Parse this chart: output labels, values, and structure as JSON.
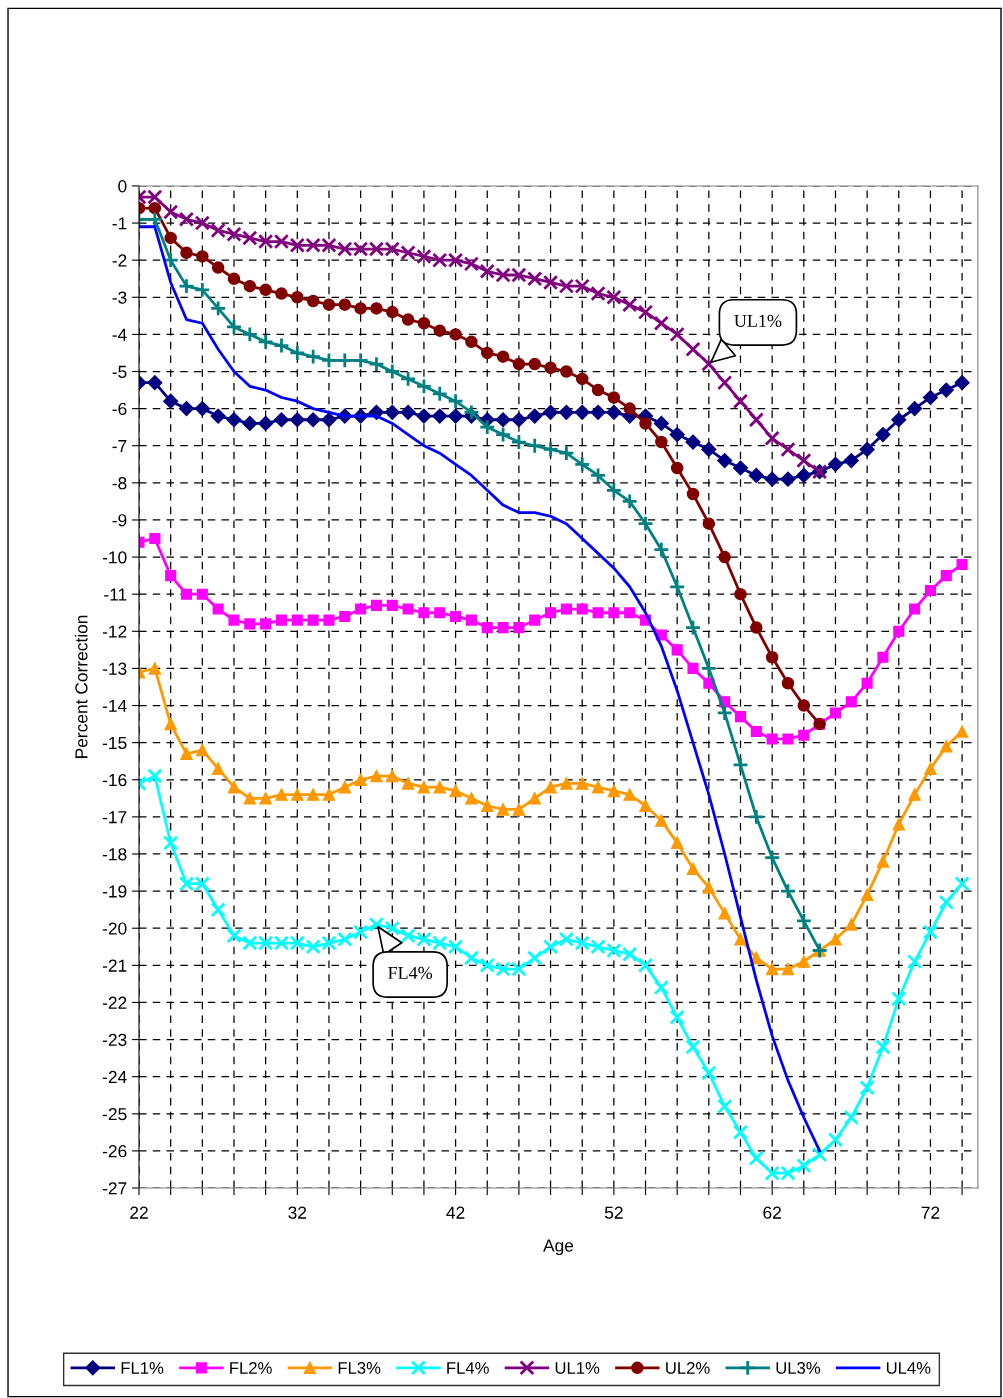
{
  "chart_data": {
    "type": "line",
    "xlabel": "Age",
    "ylabel": "Percent Correction",
    "xlim": [
      22,
      75
    ],
    "ylim": [
      -27,
      0
    ],
    "xticks": [
      22,
      {
        "value": 24,
        "label": null
      },
      {
        "value": 26,
        "label": null
      },
      {
        "value": 28,
        "label": null
      },
      {
        "value": 30,
        "label": null
      },
      32,
      {
        "value": 34,
        "label": null
      },
      {
        "value": 36,
        "label": null
      },
      {
        "value": 38,
        "label": null
      },
      {
        "value": 40,
        "label": null
      },
      42,
      {
        "value": 44,
        "label": null
      },
      {
        "value": 46,
        "label": null
      },
      {
        "value": 48,
        "label": null
      },
      {
        "value": 50,
        "label": null
      },
      52,
      {
        "value": 54,
        "label": null
      },
      {
        "value": 56,
        "label": null
      },
      {
        "value": 58,
        "label": null
      },
      {
        "value": 60,
        "label": null
      },
      62,
      {
        "value": 64,
        "label": null
      },
      {
        "value": 66,
        "label": null
      },
      {
        "value": 68,
        "label": null
      },
      {
        "value": 70,
        "label": null
      },
      72,
      {
        "value": 74,
        "label": null
      }
    ],
    "yticks": [
      0,
      -1,
      -2,
      -3,
      -4,
      -5,
      -6,
      -7,
      -8,
      -9,
      -10,
      -11,
      -12,
      -13,
      -14,
      -15,
      -16,
      -17,
      -18,
      -19,
      -20,
      -21,
      -22,
      -23,
      -24,
      -25,
      -26,
      -27
    ],
    "grid": true,
    "legend": "bottom",
    "line_style": "solid",
    "x": [
      22,
      23,
      24,
      25,
      26,
      27,
      28,
      29,
      30,
      31,
      32,
      33,
      34,
      35,
      36,
      37,
      38,
      39,
      40,
      41,
      42,
      43,
      44,
      45,
      46,
      47,
      48,
      49,
      50,
      51,
      52,
      53,
      54,
      55,
      56,
      57,
      58,
      59,
      60,
      61,
      62,
      63,
      64,
      65,
      66,
      67,
      68,
      69,
      70,
      71,
      72,
      73,
      74
    ],
    "series": [
      {
        "name": "FL1%",
        "color": "#000080",
        "marker": "diamond",
        "values": [
          -5.3,
          -5.3,
          -5.8,
          -6.0,
          -6.0,
          -6.2,
          -6.3,
          -6.4,
          -6.4,
          -6.3,
          -6.3,
          -6.3,
          -6.3,
          -6.2,
          -6.2,
          -6.1,
          -6.1,
          -6.1,
          -6.2,
          -6.2,
          -6.2,
          -6.2,
          -6.3,
          -6.3,
          -6.3,
          -6.2,
          -6.1,
          -6.1,
          -6.1,
          -6.1,
          -6.1,
          -6.2,
          -6.2,
          -6.4,
          -6.7,
          -6.9,
          -7.1,
          -7.4,
          -7.6,
          -7.8,
          -7.9,
          -7.9,
          -7.8,
          -7.7,
          -7.5,
          -7.4,
          -7.1,
          -6.7,
          -6.3,
          -6.0,
          -5.7,
          -5.5,
          -5.3
        ]
      },
      {
        "name": "FL2%",
        "color": "#ff00ff",
        "marker": "square",
        "values": [
          -9.6,
          -9.5,
          -10.5,
          -11.0,
          -11.0,
          -11.4,
          -11.7,
          -11.8,
          -11.8,
          -11.7,
          -11.7,
          -11.7,
          -11.7,
          -11.6,
          -11.4,
          -11.3,
          -11.3,
          -11.4,
          -11.5,
          -11.5,
          -11.6,
          -11.7,
          -11.9,
          -11.9,
          -11.9,
          -11.7,
          -11.5,
          -11.4,
          -11.4,
          -11.5,
          -11.5,
          -11.5,
          -11.7,
          -12.1,
          -12.5,
          -13.0,
          -13.4,
          -13.9,
          -14.3,
          -14.7,
          -14.9,
          -14.9,
          -14.8,
          -14.5,
          -14.2,
          -13.9,
          -13.4,
          -12.7,
          -12.0,
          -11.4,
          -10.9,
          -10.5,
          -10.2
        ]
      },
      {
        "name": "FL3%",
        "color": "#ff9900",
        "marker": "triangle",
        "values": [
          -13.1,
          -13.0,
          -14.5,
          -15.3,
          -15.2,
          -15.7,
          -16.2,
          -16.5,
          -16.5,
          -16.4,
          -16.4,
          -16.4,
          -16.4,
          -16.2,
          -16.0,
          -15.9,
          -15.9,
          -16.1,
          -16.2,
          -16.2,
          -16.3,
          -16.5,
          -16.7,
          -16.8,
          -16.8,
          -16.5,
          -16.2,
          -16.1,
          -16.1,
          -16.2,
          -16.3,
          -16.4,
          -16.7,
          -17.1,
          -17.7,
          -18.4,
          -18.9,
          -19.6,
          -20.3,
          -20.8,
          -21.1,
          -21.1,
          -20.9,
          -20.6,
          -20.3,
          -19.9,
          -19.1,
          -18.2,
          -17.2,
          -16.4,
          -15.7,
          -15.1,
          -14.7
        ]
      },
      {
        "name": "FL4%",
        "color": "#00ffff",
        "marker": "cross",
        "values": [
          -16.1,
          -15.9,
          -17.7,
          -18.8,
          -18.8,
          -19.5,
          -20.2,
          -20.4,
          -20.4,
          -20.4,
          -20.4,
          -20.5,
          -20.4,
          -20.3,
          -20.1,
          -19.9,
          -20.0,
          -20.2,
          -20.3,
          -20.4,
          -20.5,
          -20.8,
          -21.0,
          -21.1,
          -21.1,
          -20.8,
          -20.5,
          -20.3,
          -20.4,
          -20.5,
          -20.6,
          -20.7,
          -21.0,
          -21.6,
          -22.4,
          -23.2,
          -23.9,
          -24.8,
          -25.5,
          -26.2,
          -26.6,
          -26.6,
          -26.4,
          -26.1,
          -25.7,
          -25.1,
          -24.3,
          -23.2,
          -21.9,
          -20.9,
          -20.1,
          -19.3,
          -18.8
        ]
      },
      {
        "name": "UL1%",
        "color": "#800080",
        "marker": "cross",
        "values": [
          -0.3,
          -0.3,
          -0.7,
          -0.9,
          -1.0,
          -1.2,
          -1.3,
          -1.4,
          -1.5,
          -1.5,
          -1.6,
          -1.6,
          -1.6,
          -1.7,
          -1.7,
          -1.7,
          -1.7,
          -1.8,
          -1.9,
          -2.0,
          -2.0,
          -2.1,
          -2.3,
          -2.4,
          -2.4,
          -2.5,
          -2.6,
          -2.7,
          -2.7,
          -2.9,
          -3.0,
          -3.2,
          -3.4,
          -3.7,
          -4.0,
          -4.4,
          -4.8,
          -5.3,
          -5.8,
          -6.3,
          -6.8,
          -7.1,
          -7.4,
          -7.7,
          null,
          null,
          null,
          null,
          null,
          null,
          null,
          null,
          null
        ]
      },
      {
        "name": "UL2%",
        "color": "#800000",
        "marker": "circle",
        "values": [
          -0.6,
          -0.6,
          -1.4,
          -1.8,
          -1.9,
          -2.2,
          -2.5,
          -2.7,
          -2.8,
          -2.9,
          -3.0,
          -3.1,
          -3.2,
          -3.2,
          -3.3,
          -3.3,
          -3.4,
          -3.6,
          -3.7,
          -3.9,
          -4.0,
          -4.2,
          -4.5,
          -4.6,
          -4.8,
          -4.8,
          -4.9,
          -5.0,
          -5.2,
          -5.5,
          -5.7,
          -6.0,
          -6.4,
          -6.9,
          -7.6,
          -8.3,
          -9.1,
          -10.0,
          -11.0,
          -11.9,
          -12.7,
          -13.4,
          -14.0,
          -14.5,
          null,
          null,
          null,
          null,
          null,
          null,
          null,
          null,
          null
        ]
      },
      {
        "name": "UL3%",
        "color": "#008080",
        "marker": "plus",
        "values": [
          -0.9,
          -0.9,
          -2.0,
          -2.7,
          -2.8,
          -3.3,
          -3.8,
          -4.0,
          -4.2,
          -4.3,
          -4.5,
          -4.6,
          -4.7,
          -4.7,
          -4.7,
          -4.8,
          -5.0,
          -5.2,
          -5.4,
          -5.6,
          -5.8,
          -6.1,
          -6.5,
          -6.7,
          -6.9,
          -7.0,
          -7.1,
          -7.2,
          -7.5,
          -7.8,
          -8.2,
          -8.5,
          -9.1,
          -9.8,
          -10.8,
          -11.9,
          -13.0,
          -14.2,
          -15.6,
          -17.0,
          -18.1,
          -19.0,
          -19.8,
          -20.6,
          null,
          null,
          null,
          null,
          null,
          null,
          null,
          null,
          null
        ]
      },
      {
        "name": "UL4%",
        "color": "#0000ff",
        "marker": "none",
        "values": [
          -1.1,
          -1.1,
          -2.6,
          -3.6,
          -3.7,
          -4.4,
          -5.0,
          -5.4,
          -5.5,
          -5.7,
          -5.8,
          -6.0,
          -6.1,
          -6.2,
          -6.2,
          -6.2,
          -6.4,
          -6.7,
          -7.0,
          -7.2,
          -7.5,
          -7.8,
          -8.2,
          -8.6,
          -8.8,
          -8.8,
          -8.9,
          -9.1,
          -9.5,
          -9.9,
          -10.3,
          -10.8,
          -11.5,
          -12.4,
          -13.6,
          -15.0,
          -16.4,
          -18.0,
          -19.7,
          -21.4,
          -22.9,
          -24.1,
          -25.1,
          -26.0,
          null,
          null,
          null,
          null,
          null,
          null,
          null,
          null,
          null
        ]
      }
    ],
    "annotations": [
      {
        "text": "UL1%",
        "x": 58,
        "y": -4.8
      },
      {
        "text": "FL4%",
        "x": 37,
        "y": -19.9
      }
    ]
  }
}
